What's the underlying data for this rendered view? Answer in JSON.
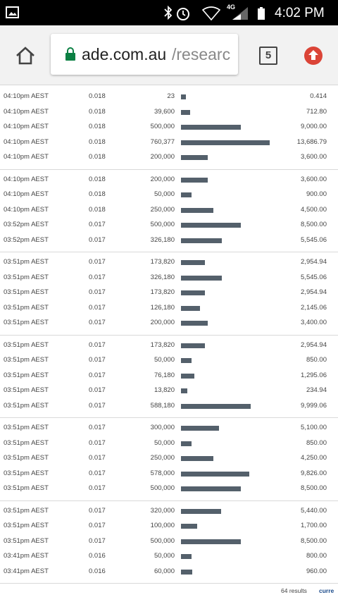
{
  "status_bar": {
    "network": "4G",
    "time": "4:02 PM"
  },
  "browser": {
    "url_host": "ade.com.au",
    "url_path": "/researc",
    "tab_count": "5"
  },
  "trades": {
    "groups": [
      [
        {
          "time": "04:10pm AEST",
          "price": "0.018",
          "volume": 23,
          "value": "0.414"
        },
        {
          "time": "04:10pm AEST",
          "price": "0.018",
          "volume": {
            "value": 39600,
            "label": "39,600"
          },
          "value": "712.80"
        },
        {
          "time": "04:10pm AEST",
          "price": "0.018",
          "volume": {
            "value": 500000,
            "label": "500,000"
          },
          "value": "9,000.00"
        },
        {
          "time": "04:10pm AEST",
          "price": "0.018",
          "volume": {
            "value": 760377,
            "label": "760,377"
          },
          "value": "13,686.79"
        },
        {
          "time": "04:10pm AEST",
          "price": "0.018",
          "volume": {
            "value": 200000,
            "label": "200,000"
          },
          "value": "3,600.00"
        }
      ],
      [
        {
          "time": "04:10pm AEST",
          "price": "0.018",
          "volume": {
            "value": 200000,
            "label": "200,000"
          },
          "value": "3,600.00"
        },
        {
          "time": "04:10pm AEST",
          "price": "0.018",
          "volume": {
            "value": 50000,
            "label": "50,000"
          },
          "value": "900.00"
        },
        {
          "time": "04:10pm AEST",
          "price": "0.018",
          "volume": {
            "value": 250000,
            "label": "250,000"
          },
          "value": "4,500.00"
        },
        {
          "time": "03:52pm AEST",
          "price": "0.017",
          "volume": {
            "value": 500000,
            "label": "500,000"
          },
          "value": "8,500.00"
        },
        {
          "time": "03:52pm AEST",
          "price": "0.017",
          "volume": {
            "value": 326180,
            "label": "326,180"
          },
          "value": "5,545.06"
        }
      ],
      [
        {
          "time": "03:51pm AEST",
          "price": "0.017",
          "volume": {
            "value": 173820,
            "label": "173,820"
          },
          "value": "2,954.94"
        },
        {
          "time": "03:51pm AEST",
          "price": "0.017",
          "volume": {
            "value": 326180,
            "label": "326,180"
          },
          "value": "5,545.06"
        },
        {
          "time": "03:51pm AEST",
          "price": "0.017",
          "volume": {
            "value": 173820,
            "label": "173,820"
          },
          "value": "2,954.94"
        },
        {
          "time": "03:51pm AEST",
          "price": "0.017",
          "volume": {
            "value": 126180,
            "label": "126,180"
          },
          "value": "2,145.06"
        },
        {
          "time": "03:51pm AEST",
          "price": "0.017",
          "volume": {
            "value": 200000,
            "label": "200,000"
          },
          "value": "3,400.00"
        }
      ],
      [
        {
          "time": "03:51pm AEST",
          "price": "0.017",
          "volume": {
            "value": 173820,
            "label": "173,820"
          },
          "value": "2,954.94"
        },
        {
          "time": "03:51pm AEST",
          "price": "0.017",
          "volume": {
            "value": 50000,
            "label": "50,000"
          },
          "value": "850.00"
        },
        {
          "time": "03:51pm AEST",
          "price": "0.017",
          "volume": {
            "value": 76180,
            "label": "76,180"
          },
          "value": "1,295.06"
        },
        {
          "time": "03:51pm AEST",
          "price": "0.017",
          "volume": {
            "value": 13820,
            "label": "13,820"
          },
          "value": "234.94"
        },
        {
          "time": "03:51pm AEST",
          "price": "0.017",
          "volume": {
            "value": 588180,
            "label": "588,180"
          },
          "value": "9,999.06"
        }
      ],
      [
        {
          "time": "03:51pm AEST",
          "price": "0.017",
          "volume": {
            "value": 300000,
            "label": "300,000"
          },
          "value": "5,100.00"
        },
        {
          "time": "03:51pm AEST",
          "price": "0.017",
          "volume": {
            "value": 50000,
            "label": "50,000"
          },
          "value": "850.00"
        },
        {
          "time": "03:51pm AEST",
          "price": "0.017",
          "volume": {
            "value": 250000,
            "label": "250,000"
          },
          "value": "4,250.00"
        },
        {
          "time": "03:51pm AEST",
          "price": "0.017",
          "volume": {
            "value": 578000,
            "label": "578,000"
          },
          "value": "9,826.00"
        },
        {
          "time": "03:51pm AEST",
          "price": "0.017",
          "volume": {
            "value": 500000,
            "label": "500,000"
          },
          "value": "8,500.00"
        }
      ],
      [
        {
          "time": "03:51pm AEST",
          "price": "0.017",
          "volume": {
            "value": 320000,
            "label": "320,000"
          },
          "value": "5,440.00"
        },
        {
          "time": "03:51pm AEST",
          "price": "0.017",
          "volume": {
            "value": 100000,
            "label": "100,000"
          },
          "value": "1,700.00"
        },
        {
          "time": "03:51pm AEST",
          "price": "0.017",
          "volume": {
            "value": 500000,
            "label": "500,000"
          },
          "value": "8,500.00"
        },
        {
          "time": "03:41pm AEST",
          "price": "0.016",
          "volume": {
            "value": 50000,
            "label": "50,000"
          },
          "value": "800.00"
        },
        {
          "time": "03:41pm AEST",
          "price": "0.016",
          "volume": {
            "value": 60000,
            "label": "60,000"
          },
          "value": "960.00"
        }
      ]
    ],
    "results_count": "64 results",
    "link": "curre"
  }
}
